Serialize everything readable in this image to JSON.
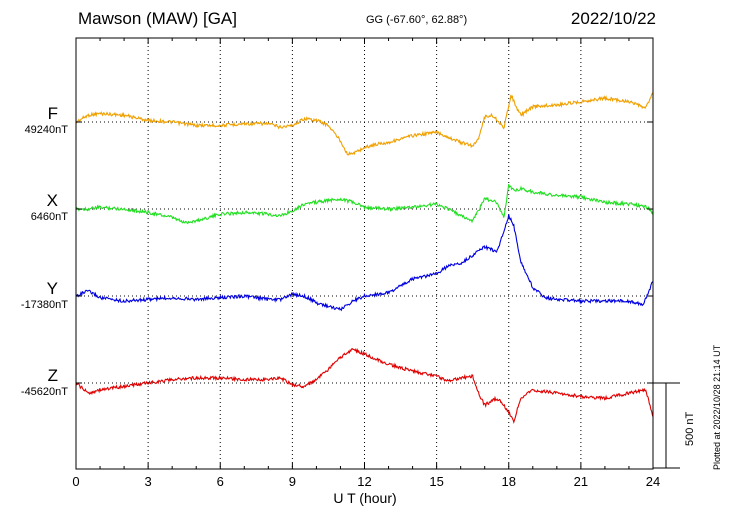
{
  "header": {
    "station": "Mawson (MAW)  [GA]",
    "coords": "GG (-67.60°,  62.88°)",
    "date": "2022/10/22"
  },
  "plotted_note": "Plotted at 2022/10/28 21:14 UT",
  "scale": {
    "label": "500 nT",
    "value_nT": 500
  },
  "chart_data": {
    "type": "line",
    "xlabel": "U T (hour)",
    "xlim": [
      0,
      24
    ],
    "xticks": [
      "0",
      "3",
      "6",
      "9",
      "12",
      "15",
      "18",
      "21",
      "24"
    ],
    "grid": true,
    "series": [
      {
        "name": "F",
        "baseline": "49240nT",
        "color": "#f0a000",
        "x": [
          0,
          0.5,
          1,
          2,
          3,
          4,
          5,
          6,
          7,
          8,
          8.5,
          9,
          9.5,
          10,
          10.5,
          11,
          11.3,
          11.6,
          12,
          12.5,
          13,
          14,
          15,
          15.5,
          16,
          16.5,
          16.7,
          17,
          17.3,
          17.6,
          17.8,
          18,
          18.1,
          18.3,
          18.5,
          19,
          20,
          21,
          22,
          23,
          23.7,
          24
        ],
        "offset_nT": [
          0,
          40,
          50,
          40,
          10,
          0,
          -20,
          -20,
          -10,
          -10,
          -30,
          -20,
          20,
          10,
          -20,
          -110,
          -190,
          -180,
          -150,
          -130,
          -120,
          -80,
          -60,
          -90,
          -120,
          -140,
          -110,
          30,
          40,
          0,
          -40,
          100,
          160,
          90,
          40,
          90,
          100,
          120,
          140,
          120,
          80,
          180
        ]
      },
      {
        "name": "X",
        "baseline": "6460nT",
        "color": "#20e020",
        "x": [
          0,
          0.5,
          1,
          2,
          3,
          4,
          4.5,
          5,
          6,
          7,
          8,
          8.5,
          9,
          9.5,
          10,
          11,
          11.5,
          12,
          13,
          14,
          15,
          15.5,
          16,
          16.5,
          17,
          17.5,
          17.8,
          18,
          18.2,
          18.5,
          19,
          20,
          21,
          22,
          23,
          23.8,
          24
        ],
        "offset_nT": [
          0,
          0,
          10,
          0,
          -20,
          -50,
          -80,
          -70,
          -30,
          -20,
          -30,
          -40,
          -10,
          30,
          40,
          60,
          40,
          10,
          0,
          10,
          30,
          0,
          -40,
          -70,
          60,
          40,
          -50,
          140,
          110,
          120,
          100,
          80,
          70,
          40,
          30,
          10,
          -30
        ]
      },
      {
        "name": "Y",
        "baseline": "-17380nT",
        "color": "#0000e0",
        "x": [
          0,
          0.5,
          1,
          2,
          3,
          4,
          5,
          6,
          7,
          8,
          8.5,
          9,
          9.5,
          10,
          10.5,
          11,
          11.5,
          12,
          13,
          14,
          15,
          15.5,
          16,
          16.5,
          17,
          17.5,
          17.8,
          18,
          18.2,
          18.5,
          19,
          19.5,
          20,
          21,
          22,
          23,
          23.6,
          24
        ],
        "offset_nT": [
          0,
          30,
          -10,
          -30,
          -20,
          -10,
          -20,
          -10,
          0,
          -20,
          -20,
          10,
          0,
          -40,
          -60,
          -80,
          -30,
          0,
          20,
          100,
          130,
          180,
          190,
          240,
          290,
          260,
          380,
          470,
          420,
          200,
          50,
          -10,
          -20,
          -30,
          -30,
          -30,
          -50,
          90
        ]
      },
      {
        "name": "Z",
        "baseline": "-45620nT",
        "color": "#e00000",
        "x": [
          0,
          0.5,
          1,
          2,
          3,
          4,
          5,
          6,
          7,
          8,
          8.5,
          9,
          9.5,
          10,
          10.5,
          11,
          11.5,
          12,
          13,
          14,
          15,
          15.5,
          16,
          16.5,
          16.8,
          17,
          17.5,
          17.8,
          18,
          18.2,
          18.5,
          19,
          20,
          21,
          22,
          23,
          23.7,
          24
        ],
        "offset_nT": [
          0,
          -60,
          -40,
          -20,
          0,
          20,
          30,
          30,
          20,
          20,
          30,
          -10,
          -20,
          20,
          80,
          150,
          200,
          170,
          110,
          70,
          40,
          10,
          30,
          40,
          -80,
          -130,
          -90,
          -130,
          -170,
          -230,
          -90,
          -40,
          -60,
          -80,
          -90,
          -60,
          -40,
          -200
        ]
      }
    ]
  }
}
